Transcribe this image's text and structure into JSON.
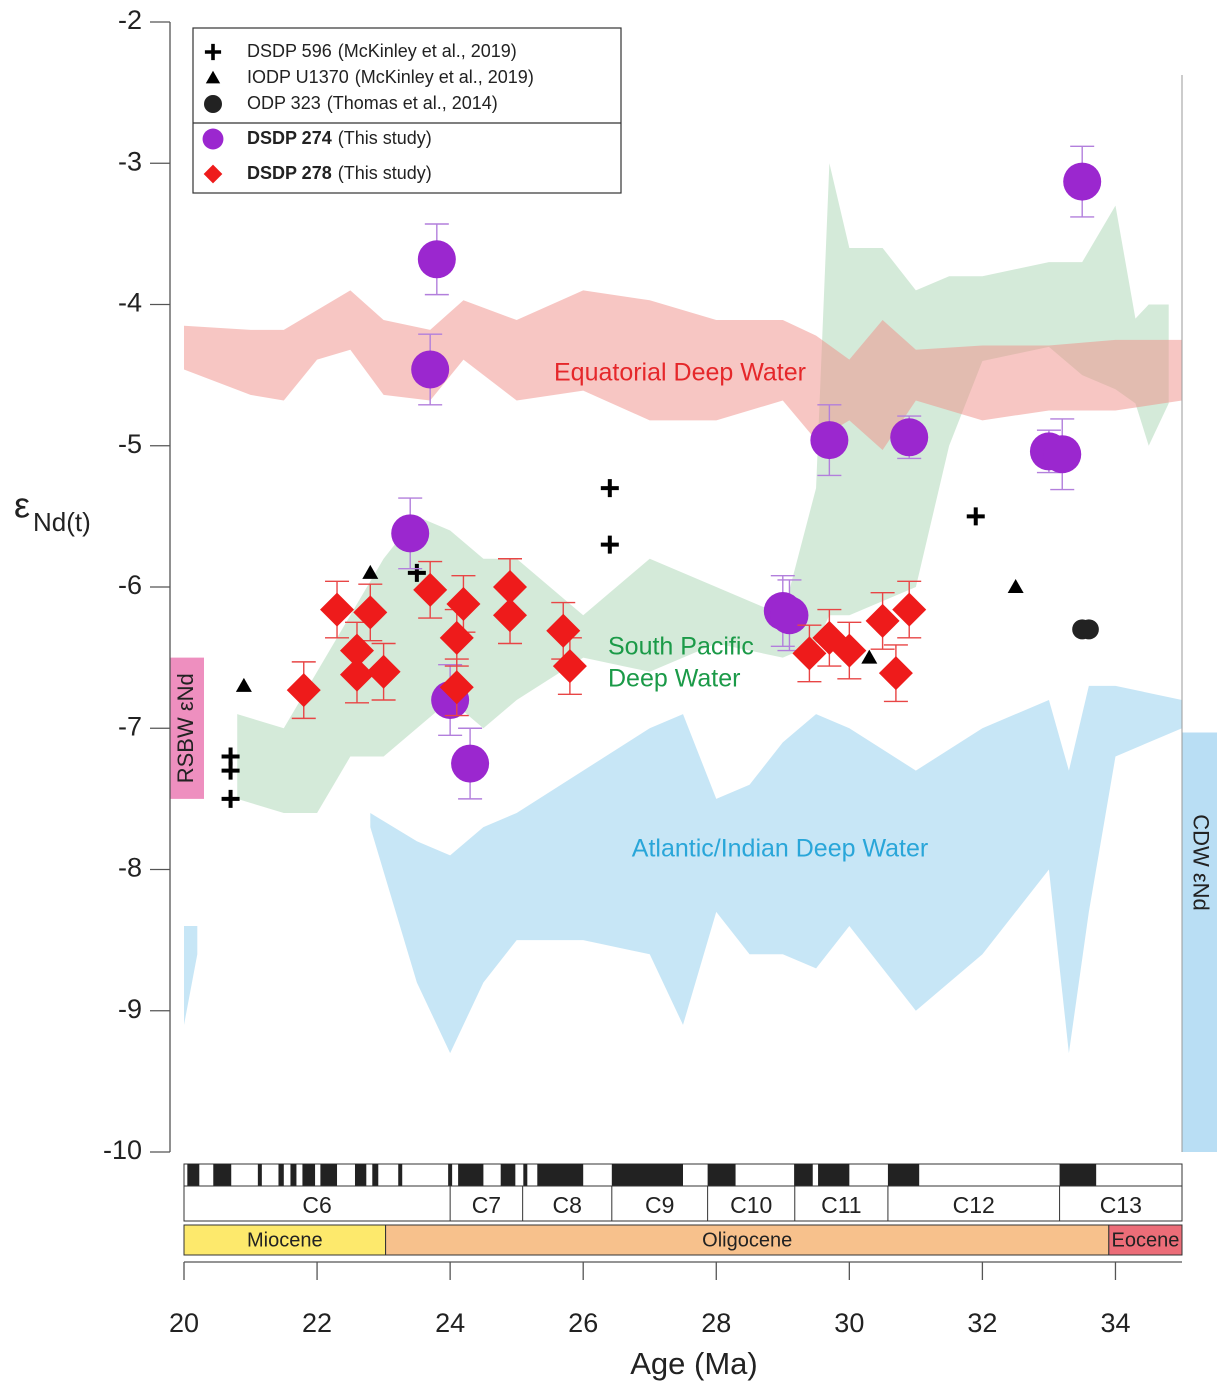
{
  "chart_data": {
    "type": "scatter",
    "y_label": {
      "symbol": "ε",
      "subscript": "Nd(t)"
    },
    "x_label": "Age (Ma)",
    "xlim": [
      20,
      35
    ],
    "xticks": [
      20,
      22,
      24,
      26,
      28,
      30,
      32,
      34
    ],
    "ylim": [
      -10,
      -2
    ],
    "yticks": [
      -2,
      -3,
      -4,
      -5,
      -6,
      -7,
      -8,
      -9,
      -10
    ],
    "series": [
      {
        "name": "DSDP 596",
        "legend_suffix": "(McKinley et al., 2019)",
        "marker": "plus",
        "color": "#000000",
        "x": [
          20.7,
          20.7,
          20.7,
          23.5,
          26.4,
          26.4,
          31.9
        ],
        "values": [
          -7.2,
          -7.3,
          -7.5,
          -5.9,
          -5.3,
          -5.7,
          -5.5
        ]
      },
      {
        "name": "IODP U1370",
        "legend_suffix": "(McKinley et al., 2019)",
        "marker": "triangle",
        "color": "#000000",
        "x": [
          20.9,
          22.8,
          30.3,
          32.5
        ],
        "values": [
          -6.7,
          -5.9,
          -6.5,
          -6.0
        ]
      },
      {
        "name": "ODP 323",
        "legend_suffix": "(Thomas et al., 2014)",
        "marker": "circle",
        "color": "#222222",
        "x": [
          33.5,
          33.6
        ],
        "values": [
          -6.3,
          -6.3
        ]
      },
      {
        "name": "DSDP 274",
        "legend_suffix": "(This study)",
        "marker": "circle",
        "color": "#9b27cf",
        "error_color": "#b27fdc",
        "bold": true,
        "x": [
          23.8,
          23.7,
          23.4,
          24.0,
          24.3,
          29.7,
          30.9,
          29.0,
          29.1,
          33.0,
          33.2,
          33.5
        ],
        "values": [
          -3.68,
          -4.46,
          -5.62,
          -6.8,
          -7.25,
          -4.96,
          -4.94,
          -6.17,
          -6.2,
          -5.04,
          -5.06,
          -3.13
        ],
        "errors": [
          0.25,
          0.25,
          0.25,
          0.25,
          0.25,
          0.25,
          0.15,
          0.25,
          0.25,
          0.15,
          0.25,
          0.25
        ]
      },
      {
        "name": "DSDP 278",
        "legend_suffix": "(This study)",
        "marker": "diamond",
        "color": "#ee1b1b",
        "error_color": "#e84545",
        "bold": true,
        "x": [
          21.8,
          22.3,
          22.6,
          22.6,
          22.8,
          23.0,
          23.7,
          24.1,
          24.1,
          24.2,
          24.9,
          24.9,
          25.7,
          25.8,
          29.4,
          29.7,
          30.0,
          30.5,
          30.7,
          30.9
        ],
        "values": [
          -6.73,
          -6.16,
          -6.45,
          -6.62,
          -6.18,
          -6.6,
          -6.02,
          -6.36,
          -6.71,
          -6.12,
          -6.0,
          -6.2,
          -6.31,
          -6.56,
          -6.47,
          -6.36,
          -6.45,
          -6.24,
          -6.61,
          -6.16
        ],
        "errors": [
          0.2,
          0.2,
          0.2,
          0.2,
          0.2,
          0.2,
          0.2,
          0.2,
          0.2,
          0.2,
          0.2,
          0.2,
          0.2,
          0.2,
          0.2,
          0.2,
          0.2,
          0.2,
          0.2,
          0.2
        ]
      }
    ],
    "bands": [
      {
        "label": [
          "Atlantic/Indian Deep Water"
        ],
        "color": "#8fcdee",
        "x": [
          20.0,
          20.2,
          21.0,
          22.8,
          23.5,
          24.0,
          24.5,
          25.0,
          26.0,
          27.0,
          27.5,
          28.0,
          28.5,
          29.0,
          29.5,
          30.0,
          31.0,
          32.0,
          33.0,
          33.3,
          33.6,
          34.0,
          35.0
        ],
        "upper": [
          -8.4,
          -8.4,
          null,
          -7.6,
          -7.8,
          -7.9,
          -7.7,
          -7.6,
          -7.3,
          -7.0,
          -6.9,
          -7.5,
          -7.4,
          -7.1,
          -6.9,
          -7.0,
          -7.3,
          -7.0,
          -6.8,
          -7.3,
          -6.7,
          -6.7,
          -6.8
        ],
        "lower": [
          -9.1,
          -8.6,
          null,
          -7.7,
          -8.8,
          -9.3,
          -8.8,
          -8.5,
          -8.5,
          -8.6,
          -9.1,
          -8.3,
          -8.6,
          -8.6,
          -8.7,
          -8.4,
          -9.0,
          -8.6,
          -8.0,
          -9.3,
          -8.3,
          -7.2,
          -7.0
        ]
      },
      {
        "label": [
          "South Pacific",
          "Deep Water"
        ],
        "color": "#a9d6b3",
        "x": [
          20.8,
          21.5,
          22.0,
          22.5,
          23.0,
          23.5,
          24.0,
          24.5,
          25.0,
          26.0,
          27.0,
          28.0,
          29.0,
          29.5,
          29.7,
          30.0,
          30.5,
          31.0,
          31.5,
          32.0,
          33.0,
          33.5,
          34.0,
          34.3,
          34.5,
          34.8
        ],
        "upper": [
          -6.9,
          -7.0,
          -6.6,
          -6.2,
          -5.8,
          -5.5,
          -5.6,
          -5.8,
          -5.8,
          -6.2,
          -5.8,
          -6.0,
          -6.2,
          -5.3,
          -3.0,
          -3.6,
          -3.6,
          -3.9,
          -3.8,
          -3.8,
          -3.7,
          -3.7,
          -3.3,
          -4.1,
          -4.0,
          -4.0
        ],
        "lower": [
          -7.5,
          -7.6,
          -7.6,
          -7.2,
          -7.2,
          -7.0,
          -6.8,
          -7.0,
          -6.8,
          -6.5,
          -6.6,
          -6.4,
          -6.5,
          -6.4,
          -6.2,
          -6.2,
          -6.1,
          -6.0,
          -5.0,
          -4.4,
          -4.3,
          -4.5,
          -4.6,
          -4.7,
          -5.0,
          -4.7
        ]
      },
      {
        "label": [
          "Equatorial Deep Water"
        ],
        "color": "#f08e88",
        "x": [
          20.0,
          21.0,
          21.5,
          22.0,
          22.5,
          23.0,
          23.7,
          24.2,
          25.0,
          26.0,
          27.0,
          28.0,
          29.0,
          29.5,
          30.0,
          30.5,
          31.0,
          32.0,
          33.0,
          34.0,
          35.0
        ],
        "upper": [
          -4.15,
          -4.18,
          -4.18,
          -4.04,
          -3.9,
          -4.11,
          -4.18,
          -3.97,
          -4.11,
          -3.9,
          -3.97,
          -4.11,
          -4.11,
          -4.22,
          -4.39,
          -4.11,
          -4.32,
          -4.29,
          -4.29,
          -4.25,
          -4.25
        ],
        "lower": [
          -4.46,
          -4.64,
          -4.68,
          -4.39,
          -4.32,
          -4.64,
          -4.68,
          -4.39,
          -4.68,
          -4.61,
          -4.82,
          -4.82,
          -4.68,
          -4.96,
          -4.82,
          -5.03,
          -4.68,
          -4.82,
          -4.75,
          -4.75,
          -4.68
        ]
      }
    ],
    "reference_bars": [
      {
        "label": "RSBW εNd",
        "color": "#ee8fbf",
        "ylim": [
          -7.5,
          -6.5
        ],
        "side": "left"
      },
      {
        "label": "CDW εNd",
        "color": "#b9def4",
        "ylim": [
          -10,
          -7.03
        ],
        "side": "right"
      }
    ],
    "magnetochrons": {
      "names": [
        "C6",
        "C7",
        "C8",
        "C9",
        "C10",
        "C11",
        "C12",
        "C13"
      ],
      "bounds": [
        20,
        24.0,
        25.09,
        26.43,
        27.87,
        29.18,
        30.58,
        33.16,
        35
      ],
      "normal_polarity": [
        [
          20.05,
          20.23
        ],
        [
          20.44,
          20.71
        ],
        [
          21.11,
          21.17
        ],
        [
          21.42,
          21.5
        ],
        [
          21.6,
          21.69
        ],
        [
          21.78,
          21.97
        ],
        [
          22.05,
          22.3
        ],
        [
          22.57,
          22.74
        ],
        [
          22.83,
          22.92
        ],
        [
          23.22,
          23.28
        ],
        [
          23.97,
          24.03
        ],
        [
          24.12,
          24.5
        ],
        [
          24.76,
          24.98
        ],
        [
          25.1,
          25.16
        ],
        [
          25.31,
          26.0
        ],
        [
          26.43,
          27.5
        ],
        [
          27.87,
          28.29
        ],
        [
          29.17,
          29.45
        ],
        [
          29.53,
          30.0
        ],
        [
          30.58,
          31.05
        ],
        [
          33.16,
          33.71
        ]
      ]
    },
    "epochs": {
      "names": [
        "Miocene",
        "Oligocene",
        "Eocene"
      ],
      "bounds": [
        20,
        23.03,
        33.9,
        35
      ],
      "colors": [
        "#fde96c",
        "#f7c18c",
        "#ec6d78"
      ]
    }
  }
}
